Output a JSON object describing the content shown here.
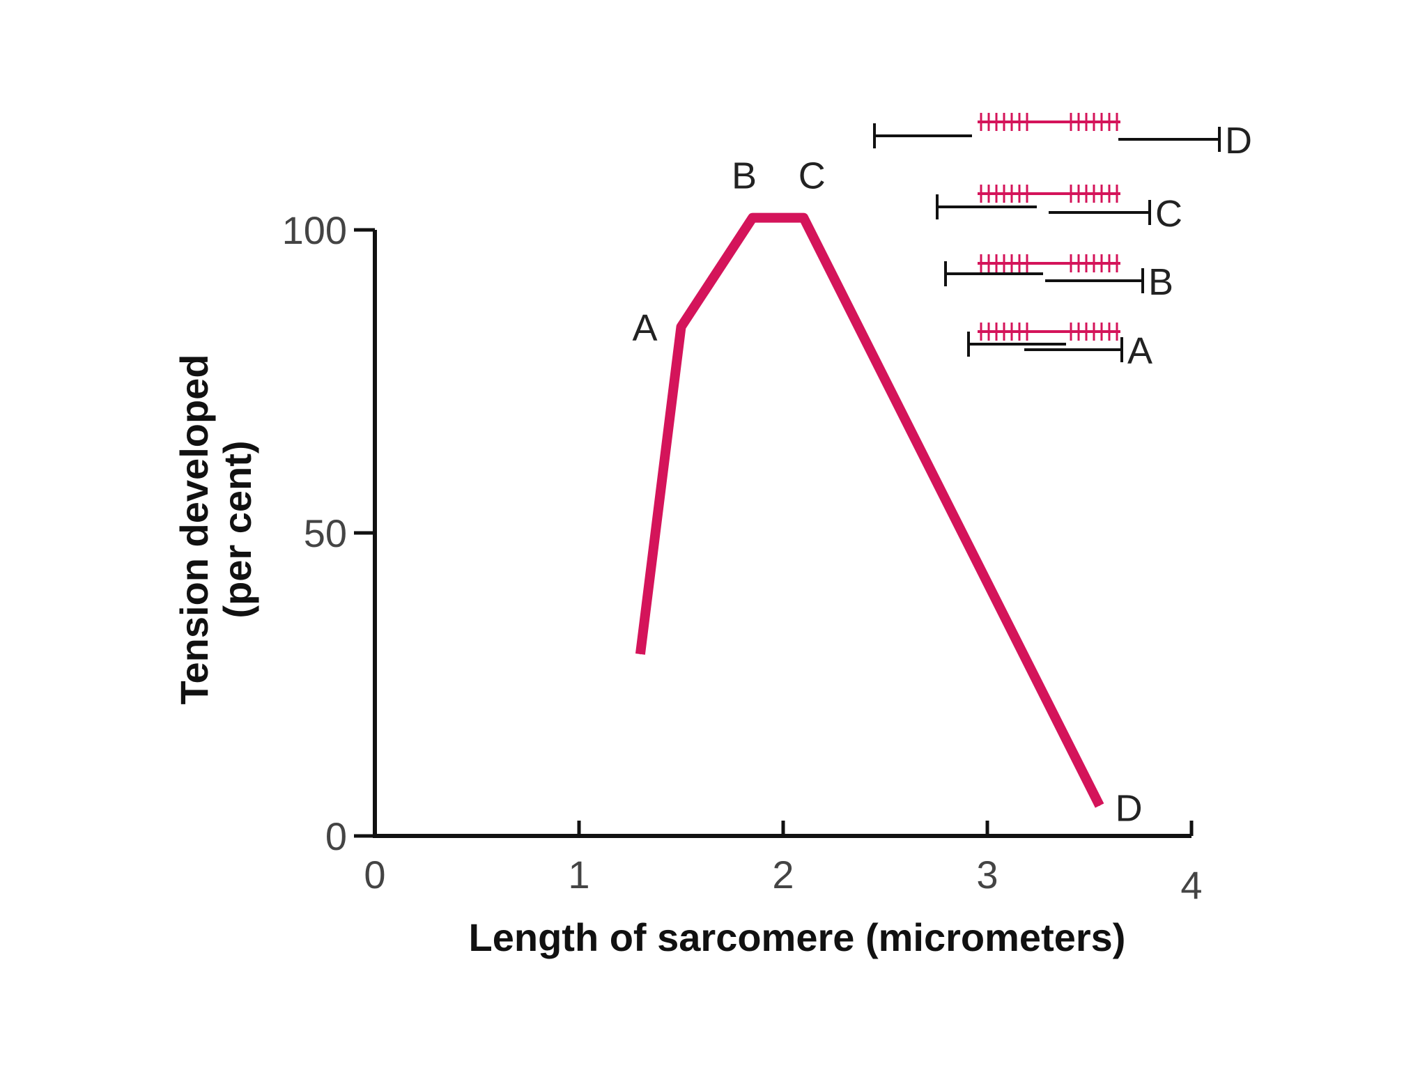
{
  "chart_data": {
    "type": "line",
    "xlabel": "Length of sarcomere (micrometers)",
    "ylabel_line1": "Tension developed",
    "ylabel_line2": "(per cent)",
    "xlim": [
      0,
      4
    ],
    "ylim": [
      0,
      100
    ],
    "x_ticks": [
      "0",
      "1",
      "2",
      "3",
      "4"
    ],
    "y_ticks": [
      "0",
      "50",
      "100"
    ],
    "grid": false,
    "legend": "none",
    "line_color": "#d4145a",
    "series": [
      {
        "x": [
          1.3,
          1.5,
          1.85,
          2.1,
          3.55
        ],
        "y": [
          30,
          84,
          102,
          102,
          5
        ]
      }
    ],
    "point_labels": [
      {
        "label": "A",
        "x": 1.5,
        "y": 84
      },
      {
        "label": "B",
        "x": 1.85,
        "y": 102
      },
      {
        "label": "C",
        "x": 2.1,
        "y": 102
      },
      {
        "label": "D",
        "x": 3.55,
        "y": 5
      }
    ],
    "sarcomere_diagrams": [
      {
        "label": "D"
      },
      {
        "label": "C"
      },
      {
        "label": "B"
      },
      {
        "label": "A"
      }
    ],
    "colors": {
      "myosin": "#d4145a",
      "actin": "#111111",
      "axis": "#111111"
    }
  }
}
